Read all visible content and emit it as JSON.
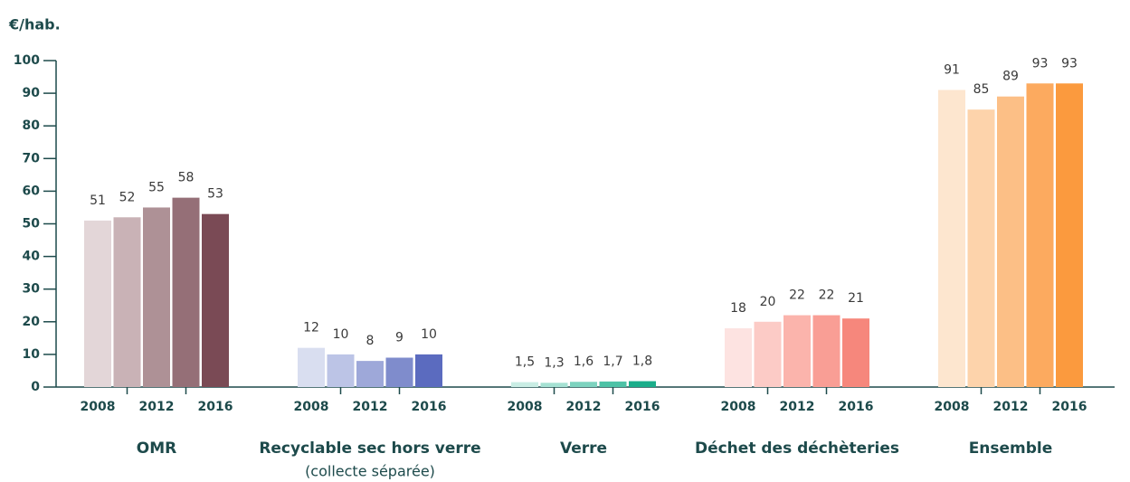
{
  "chart_data": {
    "type": "grouped_bar",
    "y_label": "€/hab.",
    "ylim": [
      0,
      100
    ],
    "yticks": [
      0,
      10,
      20,
      30,
      40,
      50,
      60,
      70,
      80,
      90,
      100
    ],
    "categories": [
      "2008",
      null,
      "2012",
      null,
      "2016"
    ],
    "groups": [
      {
        "name": "OMR",
        "colors": [
          "#e3d6d8",
          "#c9b2b6",
          "#ae9196",
          "#956f77",
          "#7a4a55"
        ],
        "values": [
          51,
          52,
          55,
          58,
          53
        ]
      },
      {
        "name": "Recyclable sec hors verre",
        "subtitle": "(collecte séparée)",
        "colors": [
          "#d9def0",
          "#bcc4e6",
          "#9ea8d9",
          "#7f8ccc",
          "#5b6bbf"
        ],
        "values": [
          12,
          10,
          8,
          9,
          10
        ]
      },
      {
        "name": "Verre",
        "colors": [
          "#c9ede4",
          "#a5e1d3",
          "#7dd3bf",
          "#4dc2a6",
          "#1aad8a"
        ],
        "values": [
          1.5,
          1.3,
          1.6,
          1.7,
          1.8
        ],
        "value_labels": [
          "1,5",
          "1,3",
          "1,6",
          "1,7",
          "1,8"
        ]
      },
      {
        "name": "Déchet des déchèteries",
        "colors": [
          "#fde3e1",
          "#fccbc6",
          "#fbb4ac",
          "#f99e95",
          "#f6877c"
        ],
        "values": [
          18,
          20,
          22,
          22,
          21
        ]
      },
      {
        "name": "Ensemble",
        "colors": [
          "#fde6cf",
          "#fdd3ab",
          "#fcbf86",
          "#fcaa5f",
          "#fb9a3e"
        ],
        "values": [
          91,
          85,
          89,
          93,
          93
        ]
      }
    ]
  }
}
